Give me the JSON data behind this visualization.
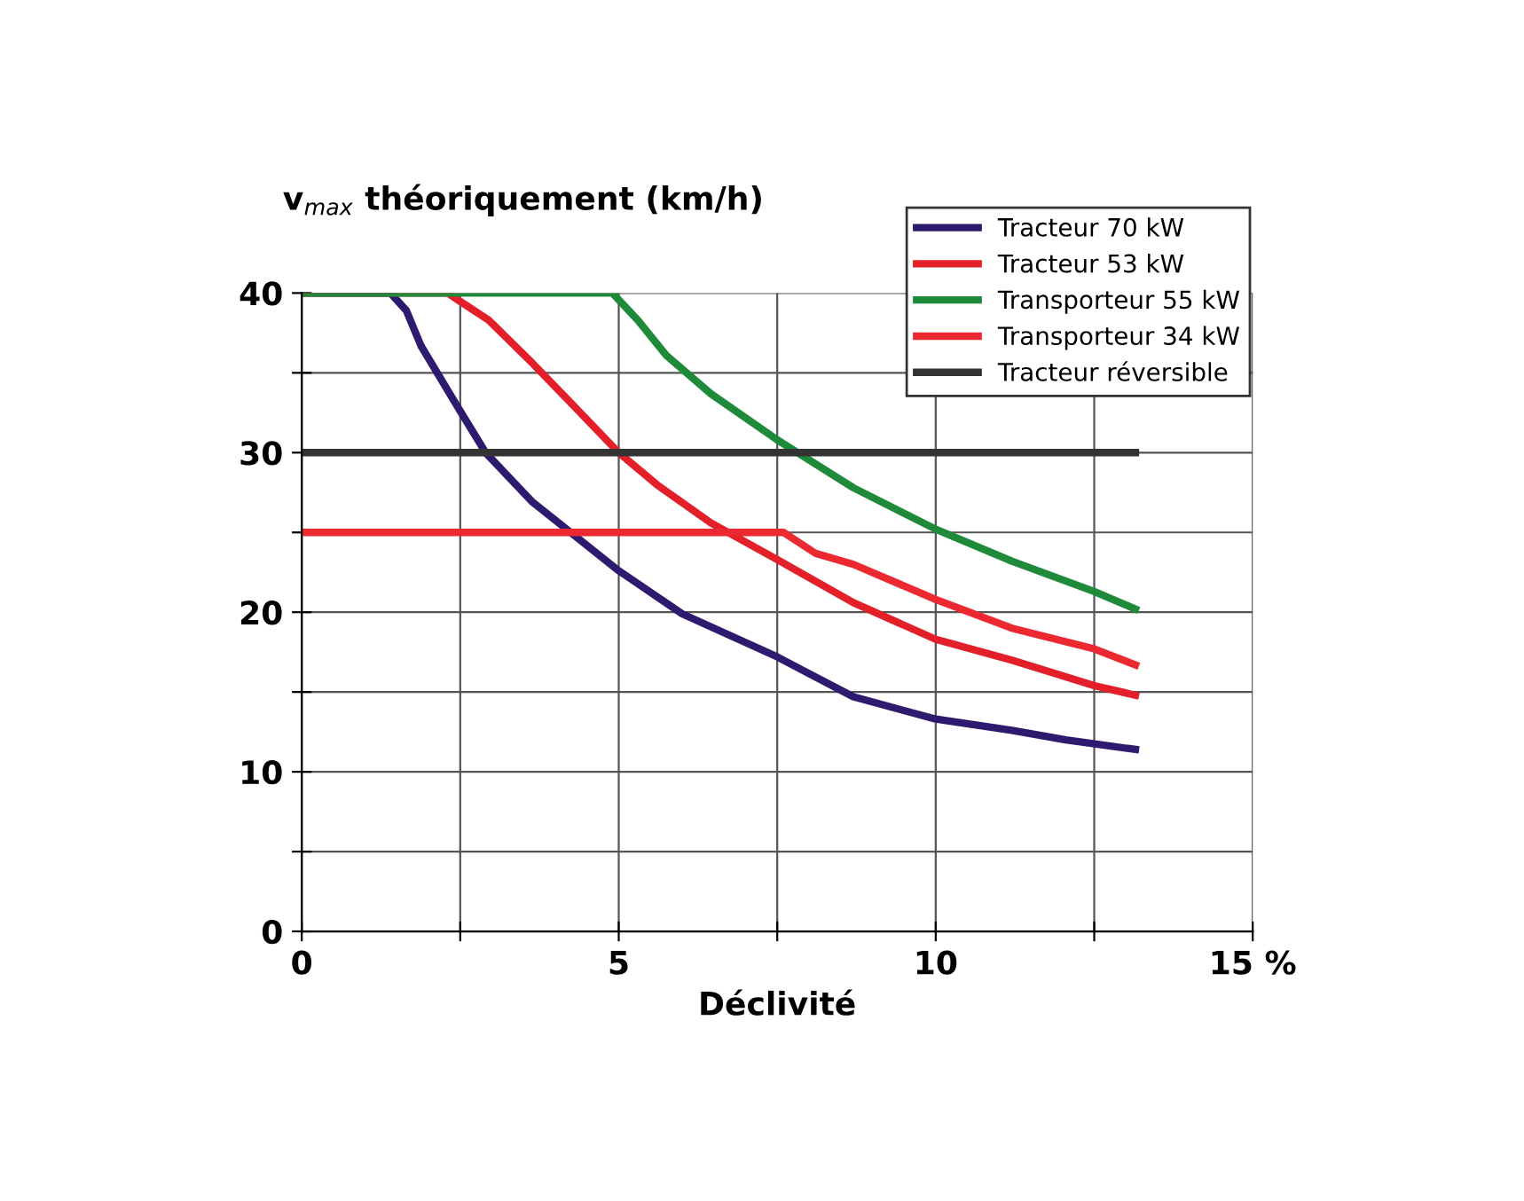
{
  "chart_data": {
    "type": "line",
    "ylabel": "v$_{max}$ théoriquement (km/h)",
    "xlabel": "Déclivité",
    "xlim": [
      0,
      15
    ],
    "ylim": [
      0,
      40
    ],
    "xticks": [
      0,
      {
        "value": 2.5,
        "label": null
      },
      5,
      {
        "value": 7.5,
        "label": null
      },
      10,
      {
        "value": 12.5,
        "label": null
      },
      {
        "value": 15,
        "label": "15 %"
      }
    ],
    "yticks": [
      0,
      {
        "value": 5,
        "label": null
      },
      10,
      {
        "value": 15,
        "label": null
      },
      20,
      {
        "value": 25,
        "label": null
      },
      30,
      {
        "value": 35,
        "label": null
      },
      40
    ],
    "grid": true,
    "legend": "top right",
    "marker": "none",
    "line_style": "solid",
    "series": [
      {
        "name": "Tracteur 70 kW",
        "color": "#2e1a6e",
        "x": [
          0,
          1.4,
          1.65,
          1.88,
          2.5,
          2.9,
          3.64,
          5,
          6.0,
          7.5,
          8.7,
          10,
          11.2,
          12.05,
          13.15
        ],
        "values": [
          40,
          40,
          38.9,
          36.7,
          32.6,
          30,
          26.9,
          22.6,
          19.9,
          17.2,
          14.7,
          13.3,
          12.6,
          12,
          11.4
        ]
      },
      {
        "name": "Tracteur 53 kW",
        "color": "#e3202a",
        "x": [
          0,
          2.3,
          2.95,
          3.64,
          4.2,
          5,
          5.6,
          6.45,
          7.5,
          8.7,
          10,
          11.2,
          12.5,
          13.15
        ],
        "values": [
          40,
          40,
          38.3,
          35.6,
          33.3,
          30,
          28,
          25.6,
          23.3,
          20.6,
          18.3,
          17,
          15.4,
          14.8
        ]
      },
      {
        "name": "Transporteur 55 kW",
        "color": "#1e8a3a",
        "x": [
          0,
          4.6,
          4.9,
          5.3,
          5.75,
          6.45,
          7.5,
          8.7,
          10,
          11.2,
          12.5,
          13.15
        ],
        "values": [
          40,
          40,
          40,
          38.3,
          36.1,
          33.7,
          30.8,
          27.8,
          25.2,
          23.2,
          21.3,
          20.2
        ]
      },
      {
        "name": "Transporteur 34 kW",
        "color": "#ec2830",
        "x": [
          0,
          7.6,
          8.1,
          8.7,
          10,
          11.2,
          12.5,
          13.15
        ],
        "values": [
          25,
          25,
          23.7,
          23,
          20.8,
          19,
          17.7,
          16.7
        ]
      },
      {
        "name": "Tracteur réversible",
        "color": "#333333",
        "x": [
          0,
          13.15
        ],
        "values": [
          30,
          30
        ]
      }
    ]
  }
}
